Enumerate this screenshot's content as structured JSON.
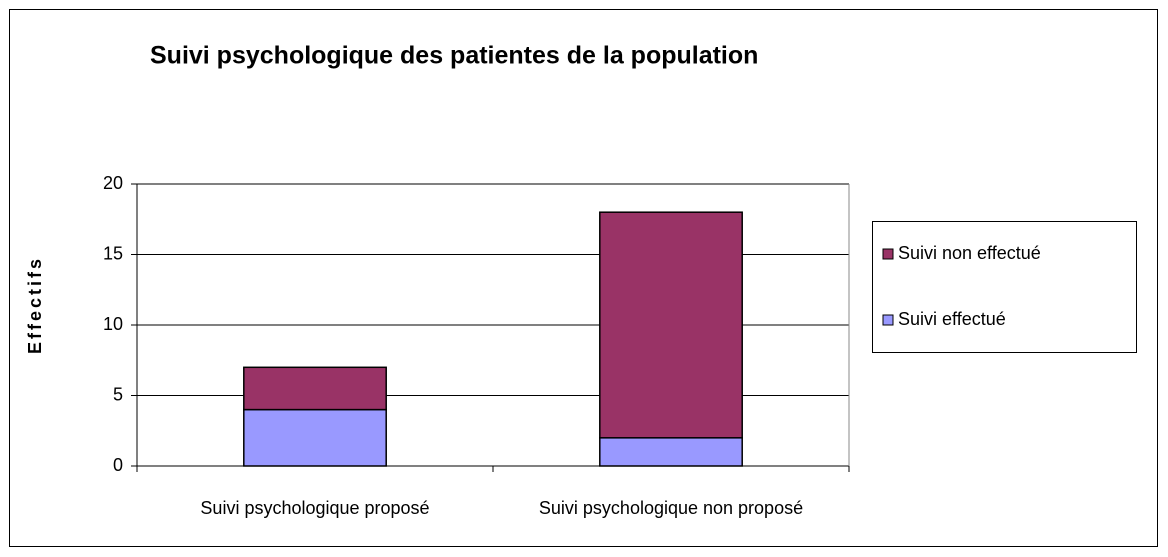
{
  "chart_data": {
    "type": "bar",
    "stacked": true,
    "title": "Suivi psychologique des patientes de la population",
    "y_label": "Effectifs",
    "categories": [
      "Suivi psychologique proposé",
      "Suivi psychologique non proposé"
    ],
    "series": [
      {
        "name": "Suivi effectué",
        "color": "#9999ff",
        "values": [
          4,
          2
        ]
      },
      {
        "name": "Suivi non effectué",
        "color": "#993366",
        "values": [
          3,
          16
        ]
      }
    ],
    "ylim": [
      0,
      20
    ],
    "yticks": [
      0,
      5,
      10,
      15,
      20
    ],
    "grid": true,
    "legend": "right"
  }
}
